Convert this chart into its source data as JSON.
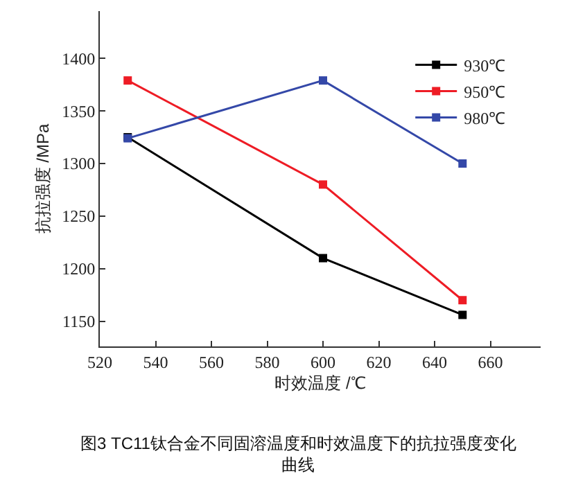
{
  "chart_data": {
    "type": "line",
    "xlabel": "时效温度 /℃",
    "ylabel": "抗拉强度 /MPa",
    "x": [
      530,
      600,
      650
    ],
    "series": [
      {
        "name": "930℃",
        "color": "#000000",
        "values": [
          1325,
          1210,
          1156
        ]
      },
      {
        "name": "950℃",
        "color": "#ee1c25",
        "values": [
          1379,
          1280,
          1170
        ]
      },
      {
        "name": "980℃",
        "color": "#3448a8",
        "values": [
          1324,
          1379,
          1300
        ]
      }
    ],
    "xlim": [
      520,
      678
    ],
    "xticks": [
      520,
      540,
      560,
      580,
      600,
      620,
      640,
      660
    ],
    "ylim": [
      1126,
      1445
    ],
    "yticks": [
      1150,
      1200,
      1250,
      1300,
      1350,
      1400
    ],
    "marker": "square",
    "line_style": "solid",
    "legend": "top right",
    "annotations": [
      "图3 TC11钛合金不同固溶温度和时效温度下的抗拉强度变化曲线"
    ]
  }
}
